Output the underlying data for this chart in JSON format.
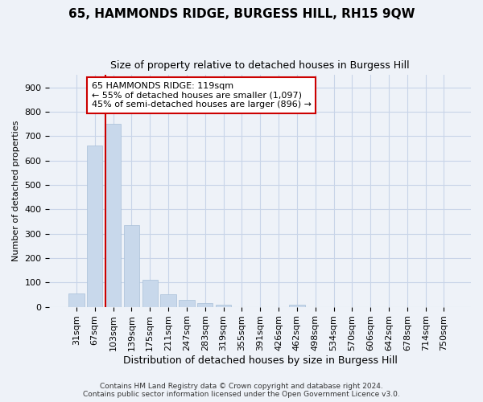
{
  "title": "65, HAMMONDS RIDGE, BURGESS HILL, RH15 9QW",
  "subtitle": "Size of property relative to detached houses in Burgess Hill",
  "xlabel": "Distribution of detached houses by size in Burgess Hill",
  "ylabel": "Number of detached properties",
  "footer_line1": "Contains HM Land Registry data © Crown copyright and database right 2024.",
  "footer_line2": "Contains public sector information licensed under the Open Government Licence v3.0.",
  "bin_labels": [
    "31sqm",
    "67sqm",
    "103sqm",
    "139sqm",
    "175sqm",
    "211sqm",
    "247sqm",
    "283sqm",
    "319sqm",
    "355sqm",
    "391sqm",
    "426sqm",
    "462sqm",
    "498sqm",
    "534sqm",
    "570sqm",
    "606sqm",
    "642sqm",
    "678sqm",
    "714sqm",
    "750sqm"
  ],
  "bar_heights": [
    55,
    660,
    750,
    335,
    110,
    53,
    27,
    15,
    10,
    0,
    0,
    0,
    8,
    0,
    0,
    0,
    0,
    0,
    0,
    0,
    0
  ],
  "bar_color": "#c8d8eb",
  "bar_edge_color": "#a8c0d8",
  "red_line_index": 2,
  "red_line_color": "#cc0000",
  "annotation_line1": "65 HAMMONDS RIDGE: 119sqm",
  "annotation_line2": "← 55% of detached houses are smaller (1,097)",
  "annotation_line3": "45% of semi-detached houses are larger (896) →",
  "annotation_box_color": "#ffffff",
  "annotation_box_edge": "#cc0000",
  "ylim": [
    0,
    950
  ],
  "yticks": [
    0,
    100,
    200,
    300,
    400,
    500,
    600,
    700,
    800,
    900
  ],
  "grid_color": "#c8d4e8",
  "bg_color": "#eef2f8",
  "title_fontsize": 11,
  "subtitle_fontsize": 9,
  "ylabel_fontsize": 8,
  "xlabel_fontsize": 9,
  "tick_fontsize": 8,
  "footer_fontsize": 6.5
}
